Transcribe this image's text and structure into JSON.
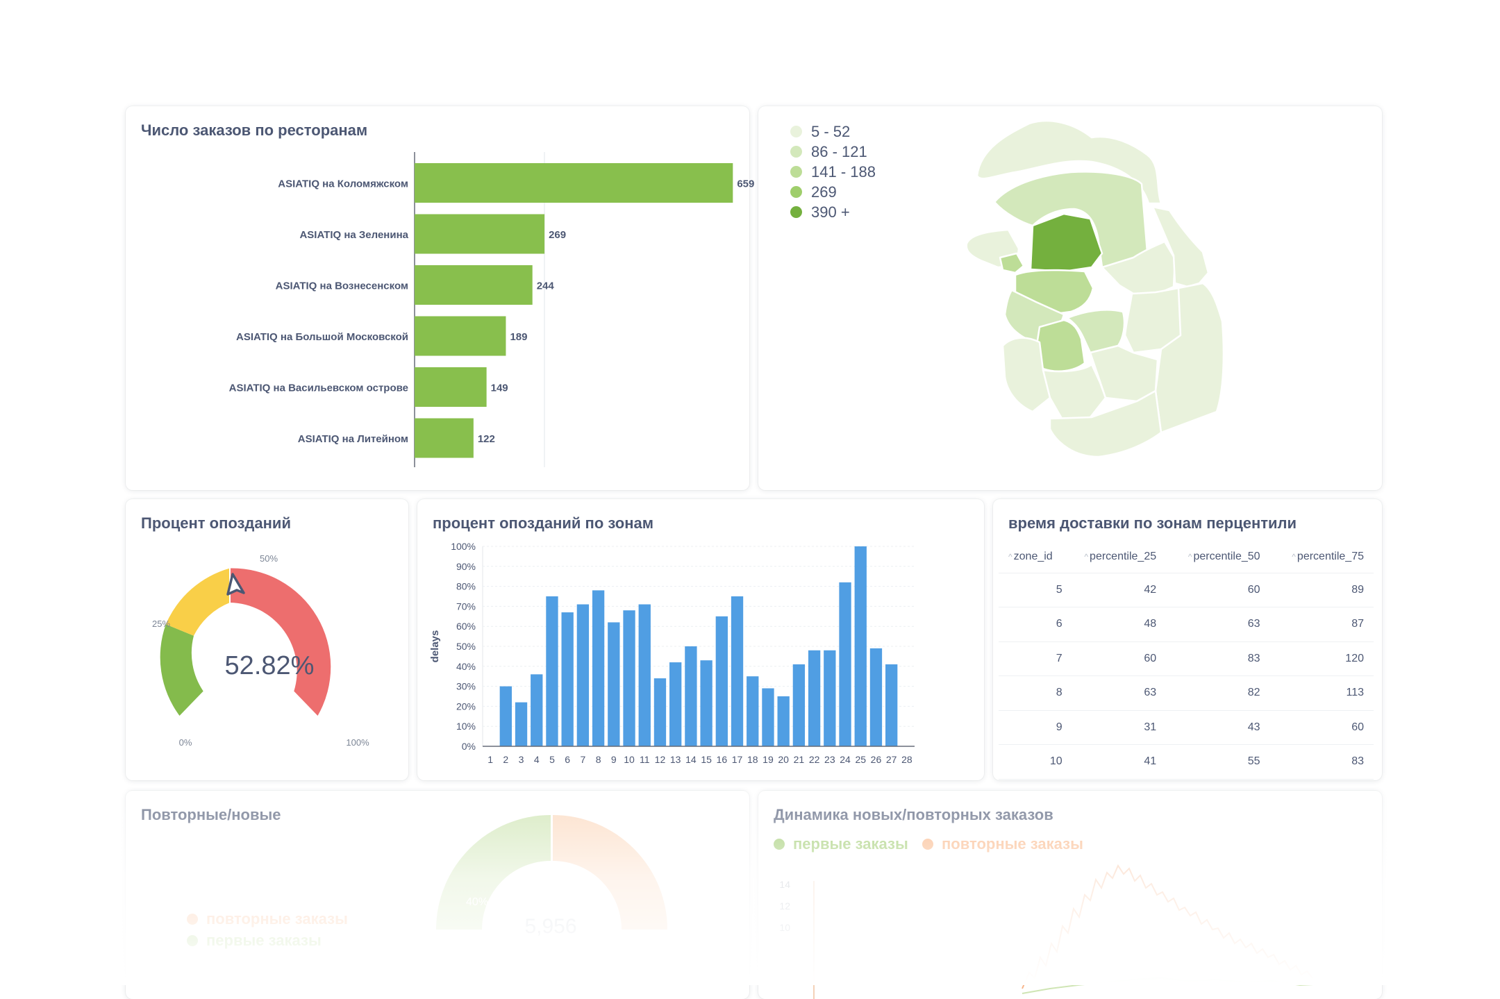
{
  "restaurant_orders": {
    "title": "Число заказов по ресторанам",
    "chart_data": {
      "type": "bar",
      "orientation": "horizontal",
      "categories": [
        "ASIATIQ на Коломяжском",
        "ASIATIQ на Зеленина",
        "ASIATIQ на Вознесенском",
        "ASIATIQ на Большой Московской",
        "ASIATIQ на Васильевском острове",
        "ASIATIQ на Литейном"
      ],
      "values": [
        659,
        269,
        244,
        189,
        149,
        122
      ],
      "color": "#88bf4d",
      "xlim": [
        0,
        860
      ]
    }
  },
  "zones_map": {
    "legend": [
      {
        "label": "5 - 52",
        "color": "#e9f2dc"
      },
      {
        "label": "86 - 121",
        "color": "#d3e8bb"
      },
      {
        "label": "141 - 188",
        "color": "#bddd97"
      },
      {
        "label": "269",
        "color": "#9fce6b"
      },
      {
        "label": "390 +",
        "color": "#74b03e"
      }
    ]
  },
  "delay_gauge": {
    "title": "Процент опозданий",
    "value_text": "52.82%",
    "value": 52.82,
    "tick_labels": [
      "0%",
      "25%",
      "50%",
      "100%"
    ],
    "colors": {
      "low": "#84bb4c",
      "mid": "#f9cf48",
      "high": "#ed6e6e"
    }
  },
  "zone_delays": {
    "title": "процент опозданий по зонам",
    "chart_data": {
      "type": "bar",
      "categories": [
        "1",
        "2",
        "3",
        "4",
        "5",
        "6",
        "7",
        "8",
        "9",
        "10",
        "11",
        "12",
        "13",
        "14",
        "15",
        "16",
        "17",
        "18",
        "19",
        "20",
        "21",
        "22",
        "23",
        "24",
        "25",
        "26",
        "27",
        "28"
      ],
      "values": [
        0,
        30,
        22,
        36,
        75,
        67,
        71,
        78,
        62,
        68,
        71,
        34,
        42,
        50,
        43,
        65,
        75,
        35,
        29,
        25,
        41,
        48,
        48,
        82,
        100,
        49,
        41,
        0
      ],
      "ylabel": "delays",
      "ylim": [
        0,
        100
      ],
      "ytick_labels": [
        "0%",
        "10%",
        "20%",
        "30%",
        "40%",
        "50%",
        "60%",
        "70%",
        "80%",
        "90%",
        "100%"
      ],
      "color": "#509ee3"
    }
  },
  "delivery_percentiles": {
    "title": "время доставки по зонам перцентили",
    "columns": [
      "zone_id",
      "percentile_25",
      "percentile_50",
      "percentile_75"
    ],
    "rows": [
      [
        "5",
        "42",
        "60",
        "89"
      ],
      [
        "6",
        "48",
        "63",
        "87"
      ],
      [
        "7",
        "60",
        "83",
        "120"
      ],
      [
        "8",
        "63",
        "82",
        "113"
      ],
      [
        "9",
        "31",
        "43",
        "60"
      ],
      [
        "10",
        "41",
        "55",
        "83"
      ]
    ]
  },
  "repeat_new": {
    "title": "Повторные/новые",
    "legend": [
      "повторные заказы",
      "первые заказы"
    ],
    "total": "5,956",
    "percent_label": "40%",
    "colors": {
      "first": "#88bf4d",
      "repeat": "#f9a469"
    }
  },
  "orders_dynamics": {
    "title": "Динамика новых/повторных заказов",
    "legend": [
      {
        "label": "первые заказы",
        "color": "#88bf4d"
      },
      {
        "label": "повторные заказы",
        "color": "#f9a469"
      }
    ],
    "ytick_labels": [
      "14",
      "12",
      "10"
    ]
  }
}
